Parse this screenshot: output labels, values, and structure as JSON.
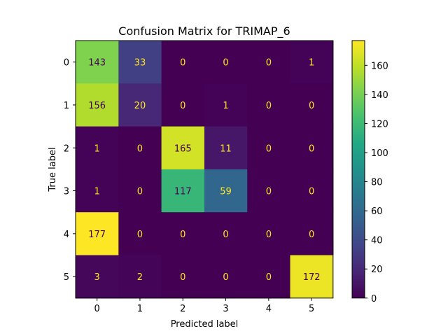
{
  "chart_data": {
    "type": "heatmap",
    "title": "Confusion Matrix for TRIMAP_6",
    "xlabel": "Predicted label",
    "ylabel": "True label",
    "x_categories": [
      "0",
      "1",
      "2",
      "3",
      "4",
      "5"
    ],
    "y_categories": [
      "0",
      "1",
      "2",
      "3",
      "4",
      "5"
    ],
    "values": [
      [
        143,
        33,
        0,
        0,
        0,
        1
      ],
      [
        156,
        20,
        0,
        1,
        0,
        0
      ],
      [
        1,
        0,
        165,
        11,
        0,
        0
      ],
      [
        1,
        0,
        117,
        59,
        0,
        0
      ],
      [
        177,
        0,
        0,
        0,
        0,
        0
      ],
      [
        3,
        2,
        0,
        0,
        0,
        172
      ]
    ],
    "colormap": "viridis",
    "vmin": 0,
    "vmax": 177,
    "colorbar_ticks": [
      0,
      20,
      40,
      60,
      80,
      100,
      120,
      140,
      160
    ],
    "text_color_low": "#fde725",
    "text_color_high": "#440154"
  }
}
